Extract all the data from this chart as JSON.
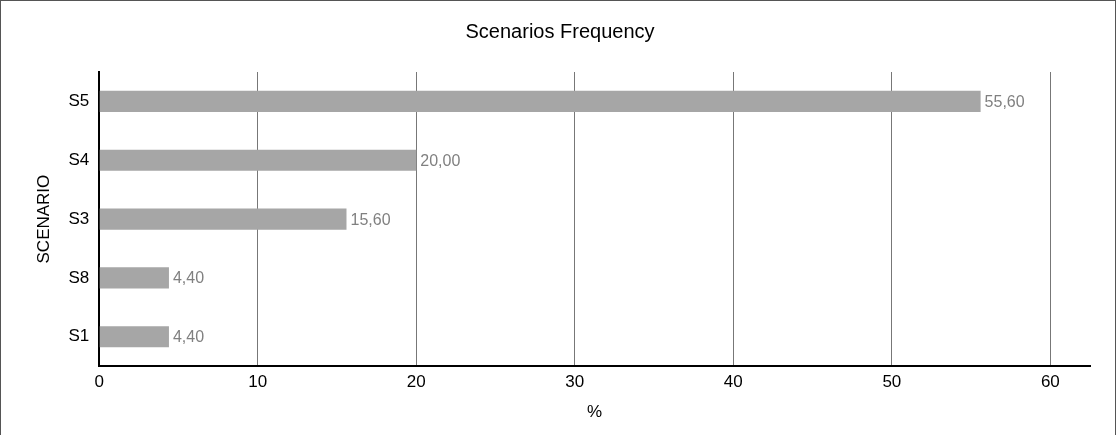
{
  "chart_data": {
    "type": "bar",
    "orientation": "horizontal",
    "title": "Scenarios Frequency",
    "xlabel": "%",
    "ylabel": "SCENARIO",
    "categories": [
      "S5",
      "S4",
      "S3",
      "S8",
      "S1"
    ],
    "values": [
      55.6,
      20.0,
      15.6,
      4.4,
      4.4
    ],
    "value_labels": [
      "55,60",
      "20,00",
      "15,60",
      "4,40",
      "4,40"
    ],
    "color": "#a6a6a6",
    "xlim": [
      0,
      62.5
    ],
    "xticks": [
      0,
      10,
      20,
      30,
      40,
      50,
      60
    ],
    "grid": "x"
  }
}
